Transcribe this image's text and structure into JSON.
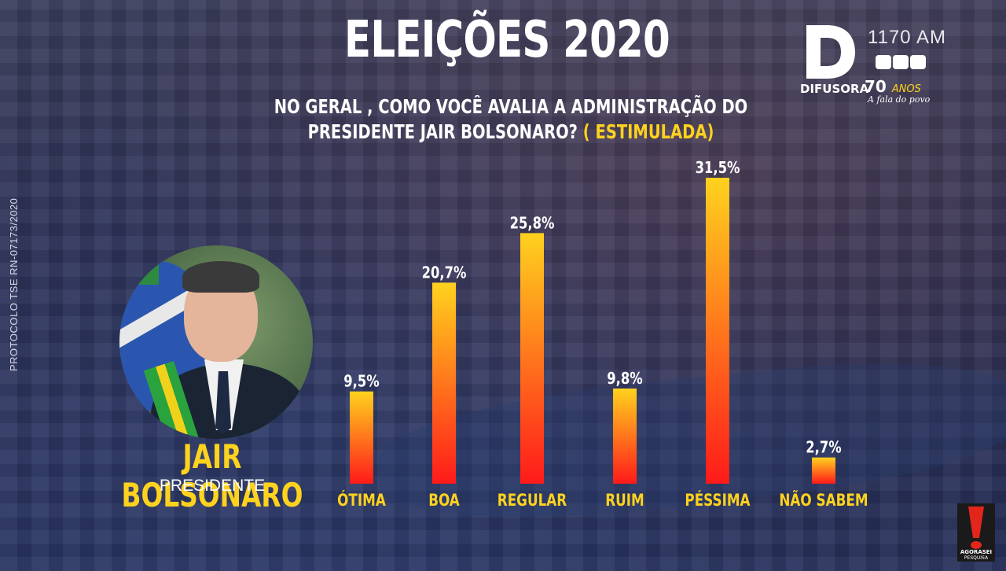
{
  "header": {
    "title": "ELEIÇÕES 2020",
    "question_line1": "NO GERAL , COMO VOCÊ AVALIA A ADMINISTRAÇÃO DO",
    "question_line2": "PRESIDENTE JAIR BOLSONARO?",
    "question_tag": "( ESTIMULADA)"
  },
  "protocol": "PROTOCOLO TSE RN-07173/2020",
  "person": {
    "name": "JAIR BOLSONARO",
    "role": "PRESIDENTE"
  },
  "brand": {
    "letter": "D",
    "name": "DIFUSORA",
    "frequency": "1170 AM",
    "years": "70",
    "years_word": "ANOS",
    "tagline": "A fala do povo",
    "pollster_name": "AGORASEI",
    "pollster_sub": "PESQUISA"
  },
  "colors": {
    "accent_yellow": "#ffd21e",
    "bar_top": "#ffd21e",
    "bar_bottom": "#ff1a1a",
    "pollster_red": "#e3261c"
  },
  "chart_data": {
    "type": "bar",
    "categories": [
      "ÓTIMA",
      "BOA",
      "REGULAR",
      "RUIM",
      "PÉSSIMA",
      "NÃO SABEM"
    ],
    "values": [
      9.5,
      20.7,
      25.8,
      9.8,
      31.5,
      2.7
    ],
    "value_labels": [
      "9,5%",
      "20,7%",
      "25,8%",
      "9,8%",
      "31,5%",
      "2,7%"
    ],
    "unit": "%",
    "ylim": [
      0,
      31.5
    ],
    "grid": false,
    "legend": "none"
  }
}
